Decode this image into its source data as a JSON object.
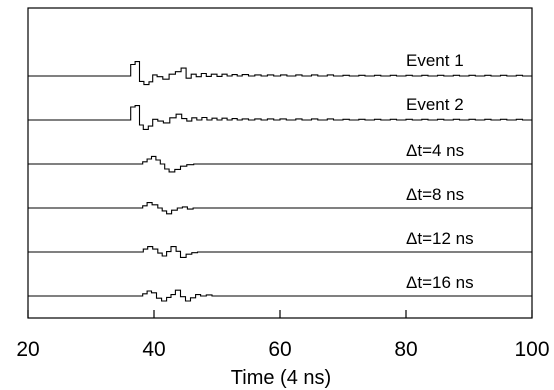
{
  "chart_data": {
    "type": "line",
    "title": "",
    "xlabel": "Time (4 ns)",
    "ylabel": "",
    "xlim": [
      20,
      100
    ],
    "xticks": [
      20,
      40,
      60,
      80,
      100
    ],
    "x_tick_labels": [
      "20",
      "40",
      "60",
      "80",
      "100"
    ],
    "y_axis_labeled": false,
    "grid": false,
    "legend": "none (series labels placed above each trace on the right)",
    "series": [
      {
        "name": "Event 1",
        "steps": [
          [
            36,
            0
          ],
          [
            36.3,
            3.2
          ],
          [
            37,
            4
          ],
          [
            37.7,
            -1.5
          ],
          [
            38.4,
            -2.4
          ],
          [
            39.2,
            -1.6
          ],
          [
            39.8,
            0.3
          ],
          [
            40.5,
            -0.2
          ],
          [
            41.4,
            -0.9
          ],
          [
            42.4,
            0.5
          ],
          [
            43.4,
            1.2
          ],
          [
            44.3,
            2.2
          ],
          [
            45.1,
            -0.6
          ],
          [
            45.9,
            0.5
          ],
          [
            46.7,
            -0.2
          ],
          [
            47.5,
            0.7
          ],
          [
            48.3,
            -0.1
          ],
          [
            49.1,
            0.5
          ],
          [
            50,
            -0.1
          ],
          [
            50.8,
            0.5
          ],
          [
            51.6,
            0
          ],
          [
            52.4,
            0.4
          ],
          [
            53.2,
            0
          ],
          [
            54,
            0.4
          ],
          [
            55,
            0
          ],
          [
            56,
            0.3
          ],
          [
            57,
            0
          ],
          [
            58,
            0.3
          ],
          [
            59,
            0
          ],
          [
            60.1,
            0.3
          ],
          [
            61.1,
            0
          ],
          [
            62.5,
            0.3
          ],
          [
            63.5,
            0
          ],
          [
            65,
            0.3
          ],
          [
            66,
            0
          ],
          [
            67.5,
            0.3
          ],
          [
            68.5,
            0
          ],
          [
            70,
            0.2
          ],
          [
            71,
            0
          ],
          [
            72.5,
            0.2
          ],
          [
            73.5,
            0
          ],
          [
            75,
            0.2
          ],
          [
            76,
            0
          ],
          [
            77.5,
            0.2
          ],
          [
            78.5,
            0
          ],
          [
            80,
            0.2
          ],
          [
            81,
            0
          ],
          [
            82.5,
            0.2
          ],
          [
            83.5,
            0
          ],
          [
            85,
            0.2
          ],
          [
            86,
            0
          ],
          [
            87.5,
            0.2
          ],
          [
            88.5,
            0
          ],
          [
            90,
            0.2
          ],
          [
            91,
            0
          ],
          [
            92.5,
            0.2
          ],
          [
            93.5,
            0
          ],
          [
            95,
            0.2
          ],
          [
            96,
            0
          ],
          [
            97.5,
            0.2
          ],
          [
            98.5,
            0
          ]
        ]
      },
      {
        "name": "Event 2",
        "steps": [
          [
            36,
            0
          ],
          [
            36.3,
            3.6
          ],
          [
            37,
            4
          ],
          [
            37.7,
            -1.4
          ],
          [
            38.3,
            -2.6
          ],
          [
            39.1,
            -1.7
          ],
          [
            39.8,
            0.2
          ],
          [
            40.6,
            -0.3
          ],
          [
            41.5,
            -0.8
          ],
          [
            42.5,
            0.6
          ],
          [
            43.5,
            1.6
          ],
          [
            44.4,
            0.4
          ],
          [
            45.2,
            -0.3
          ],
          [
            46,
            0.6
          ],
          [
            46.8,
            0
          ],
          [
            47.6,
            0.7
          ],
          [
            48.4,
            0
          ],
          [
            49.2,
            0.5
          ],
          [
            50,
            0
          ],
          [
            50.8,
            0.5
          ],
          [
            51.6,
            0
          ],
          [
            52.4,
            0.4
          ],
          [
            53.2,
            0
          ],
          [
            54,
            0.3
          ],
          [
            55,
            0
          ],
          [
            56,
            0.3
          ],
          [
            57,
            0
          ],
          [
            58,
            0.3
          ],
          [
            59,
            0
          ],
          [
            60,
            0.3
          ],
          [
            61,
            0
          ],
          [
            62.5,
            0.3
          ],
          [
            63.5,
            0
          ],
          [
            65,
            0.3
          ],
          [
            66,
            0
          ],
          [
            67.5,
            0.3
          ],
          [
            68.5,
            0
          ],
          [
            70,
            0.2
          ],
          [
            71,
            0
          ],
          [
            72.5,
            0.2
          ],
          [
            73.5,
            0
          ],
          [
            75,
            0.2
          ],
          [
            76,
            0
          ],
          [
            77.5,
            0.2
          ],
          [
            78.5,
            0
          ],
          [
            80,
            0.2
          ],
          [
            81,
            0
          ],
          [
            82.5,
            0.2
          ],
          [
            83.5,
            0
          ],
          [
            85,
            0.2
          ],
          [
            86,
            0
          ],
          [
            87.5,
            0.2
          ],
          [
            88.5,
            0
          ],
          [
            90,
            0.2
          ],
          [
            91,
            0
          ],
          [
            92.5,
            0.2
          ],
          [
            93.5,
            0
          ],
          [
            95,
            0.2
          ],
          [
            96,
            0
          ],
          [
            97.5,
            0.2
          ],
          [
            98.5,
            0
          ]
        ]
      },
      {
        "name": "Δt=4 ns",
        "steps": [
          [
            37.5,
            0
          ],
          [
            38.2,
            0.6
          ],
          [
            38.9,
            1.4
          ],
          [
            39.6,
            2.1
          ],
          [
            40.3,
            1.1
          ],
          [
            41,
            0
          ],
          [
            41.7,
            -1.4
          ],
          [
            42.4,
            -2.2
          ],
          [
            43.3,
            -1.5
          ],
          [
            44.2,
            -0.6
          ],
          [
            45.2,
            -0.2
          ],
          [
            46.3,
            0
          ]
        ]
      },
      {
        "name": "Δt=8 ns",
        "steps": [
          [
            37.5,
            0
          ],
          [
            38.2,
            0.6
          ],
          [
            38.9,
            1.5
          ],
          [
            39.7,
            0.9
          ],
          [
            40.6,
            0
          ],
          [
            41.3,
            -0.8
          ],
          [
            42,
            -1.6
          ],
          [
            42.8,
            -0.6
          ],
          [
            43.7,
            0
          ],
          [
            44.5,
            0.3
          ],
          [
            45.3,
            -0.3
          ],
          [
            46.2,
            0
          ]
        ]
      },
      {
        "name": "Δt=12 ns",
        "steps": [
          [
            37.5,
            0
          ],
          [
            38.3,
            0.8
          ],
          [
            39,
            1.5
          ],
          [
            39.8,
            0.8
          ],
          [
            40.6,
            -0.3
          ],
          [
            41.3,
            -1.1
          ],
          [
            42,
            0.1
          ],
          [
            42.7,
            1.5
          ],
          [
            43.5,
            0.2
          ],
          [
            44.2,
            -1.5
          ],
          [
            45.1,
            -0.6
          ],
          [
            46,
            -0.2
          ],
          [
            46.9,
            0
          ]
        ]
      },
      {
        "name": "Δt=16 ns",
        "steps": [
          [
            37.5,
            0
          ],
          [
            38.2,
            0.6
          ],
          [
            38.9,
            1.4
          ],
          [
            39.6,
            0.9
          ],
          [
            40.4,
            -0.6
          ],
          [
            41.2,
            -1.4
          ],
          [
            42,
            -0.4
          ],
          [
            42.7,
            0.4
          ],
          [
            43.4,
            1.6
          ],
          [
            44.2,
            -0.2
          ],
          [
            45,
            -1.4
          ],
          [
            45.8,
            -0.5
          ],
          [
            46.6,
            0.4
          ],
          [
            47.4,
            0
          ],
          [
            48.3,
            0.3
          ],
          [
            49.2,
            0
          ]
        ]
      }
    ]
  }
}
